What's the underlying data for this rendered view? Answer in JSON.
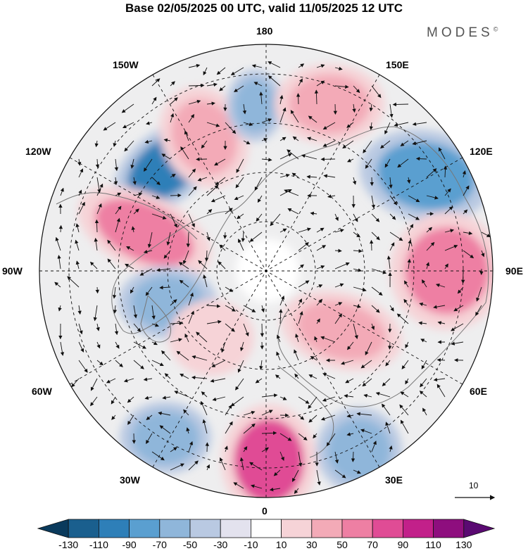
{
  "title": "Base 02/05/2025 00 UTC, valid 11/05/2025 12 UTC",
  "brand": "MODES",
  "brand_mark": "©",
  "longitude_labels": {
    "lon_180": "180",
    "lon_150e": "150E",
    "lon_120e": "120E",
    "lon_90e": "90E",
    "lon_60e": "60E",
    "lon_30e": "30E",
    "lon_0": "0",
    "lon_30w": "30W",
    "lon_60w": "60W",
    "lon_90w": "90W",
    "lon_120w": "120W",
    "lon_150w": "150W"
  },
  "vector_scale": {
    "label": "10"
  },
  "colorbar": {
    "colors": [
      "#0a3a5c",
      "#1a5f8e",
      "#2e7fb8",
      "#5a9fd0",
      "#8fb6da",
      "#b9c9e2",
      "#e3e2ee",
      "#ffffff",
      "#f6d3d7",
      "#f3aab7",
      "#ee7fa3",
      "#e04c95",
      "#c2208a",
      "#8e0e7e",
      "#5a0a72"
    ],
    "ticks": [
      "-130",
      "-110",
      "-90",
      "-70",
      "-50",
      "-30",
      "-10",
      "10",
      "30",
      "50",
      "70",
      "90",
      "110",
      "130"
    ]
  },
  "chart_data": {
    "type": "map",
    "projection": "north-polar-stereographic",
    "field": "geopotential height anomaly with wind vectors",
    "anomaly_centers": [
      {
        "sign": "negative",
        "lon": "135W",
        "value_class": "-90"
      },
      {
        "sign": "positive",
        "lon": "110W",
        "value_class": "70"
      },
      {
        "sign": "positive",
        "lon": "160W",
        "value_class": "50"
      },
      {
        "sign": "negative",
        "lon": "175W",
        "value_class": "-50"
      },
      {
        "sign": "positive",
        "lon": "160E",
        "value_class": "50"
      },
      {
        "sign": "negative",
        "lon": "125E",
        "value_class": "-70"
      },
      {
        "sign": "positive",
        "lon": "90E",
        "value_class": "70"
      },
      {
        "sign": "positive",
        "lon": "50E",
        "value_class": "50"
      },
      {
        "sign": "negative",
        "lon": "30E",
        "value_class": "-50"
      },
      {
        "sign": "positive",
        "lon": "5E",
        "value_class": "90"
      },
      {
        "sign": "negative",
        "lon": "20W",
        "value_class": "-50"
      },
      {
        "sign": "negative",
        "lon": "80W",
        "value_class": "-50"
      },
      {
        "sign": "positive",
        "lon": "55W",
        "value_class": "30"
      }
    ]
  }
}
